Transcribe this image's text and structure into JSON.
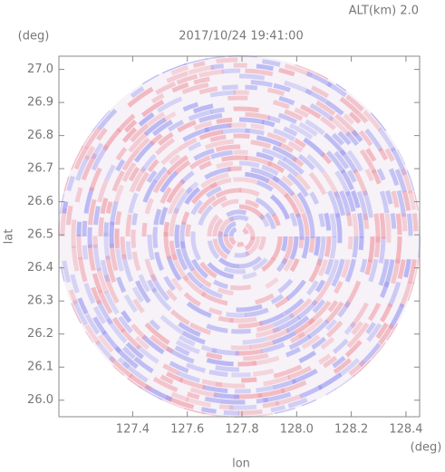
{
  "chart_data": {
    "type": "radar-ppi",
    "title": "2017/10/24 19:41:00",
    "subtitle": "ALT(km) 2.0",
    "x_label": "lon",
    "y_label": "lat",
    "x_unit": "(deg)",
    "y_unit": "(deg)",
    "xlim": [
      127.13,
      128.45
    ],
    "ylim": [
      25.95,
      27.04
    ],
    "xticks": [
      127.4,
      127.6,
      127.8,
      {
        "value": 128.0,
        "label": "128.0"
      },
      128.2,
      128.4
    ],
    "yticks": [
      {
        "value": 26.0,
        "label": "26.0"
      },
      26.1,
      26.2,
      26.3,
      26.4,
      26.5,
      26.6,
      26.7,
      26.8,
      26.9,
      {
        "value": 27.0,
        "label": "27.0"
      }
    ]
  }
}
